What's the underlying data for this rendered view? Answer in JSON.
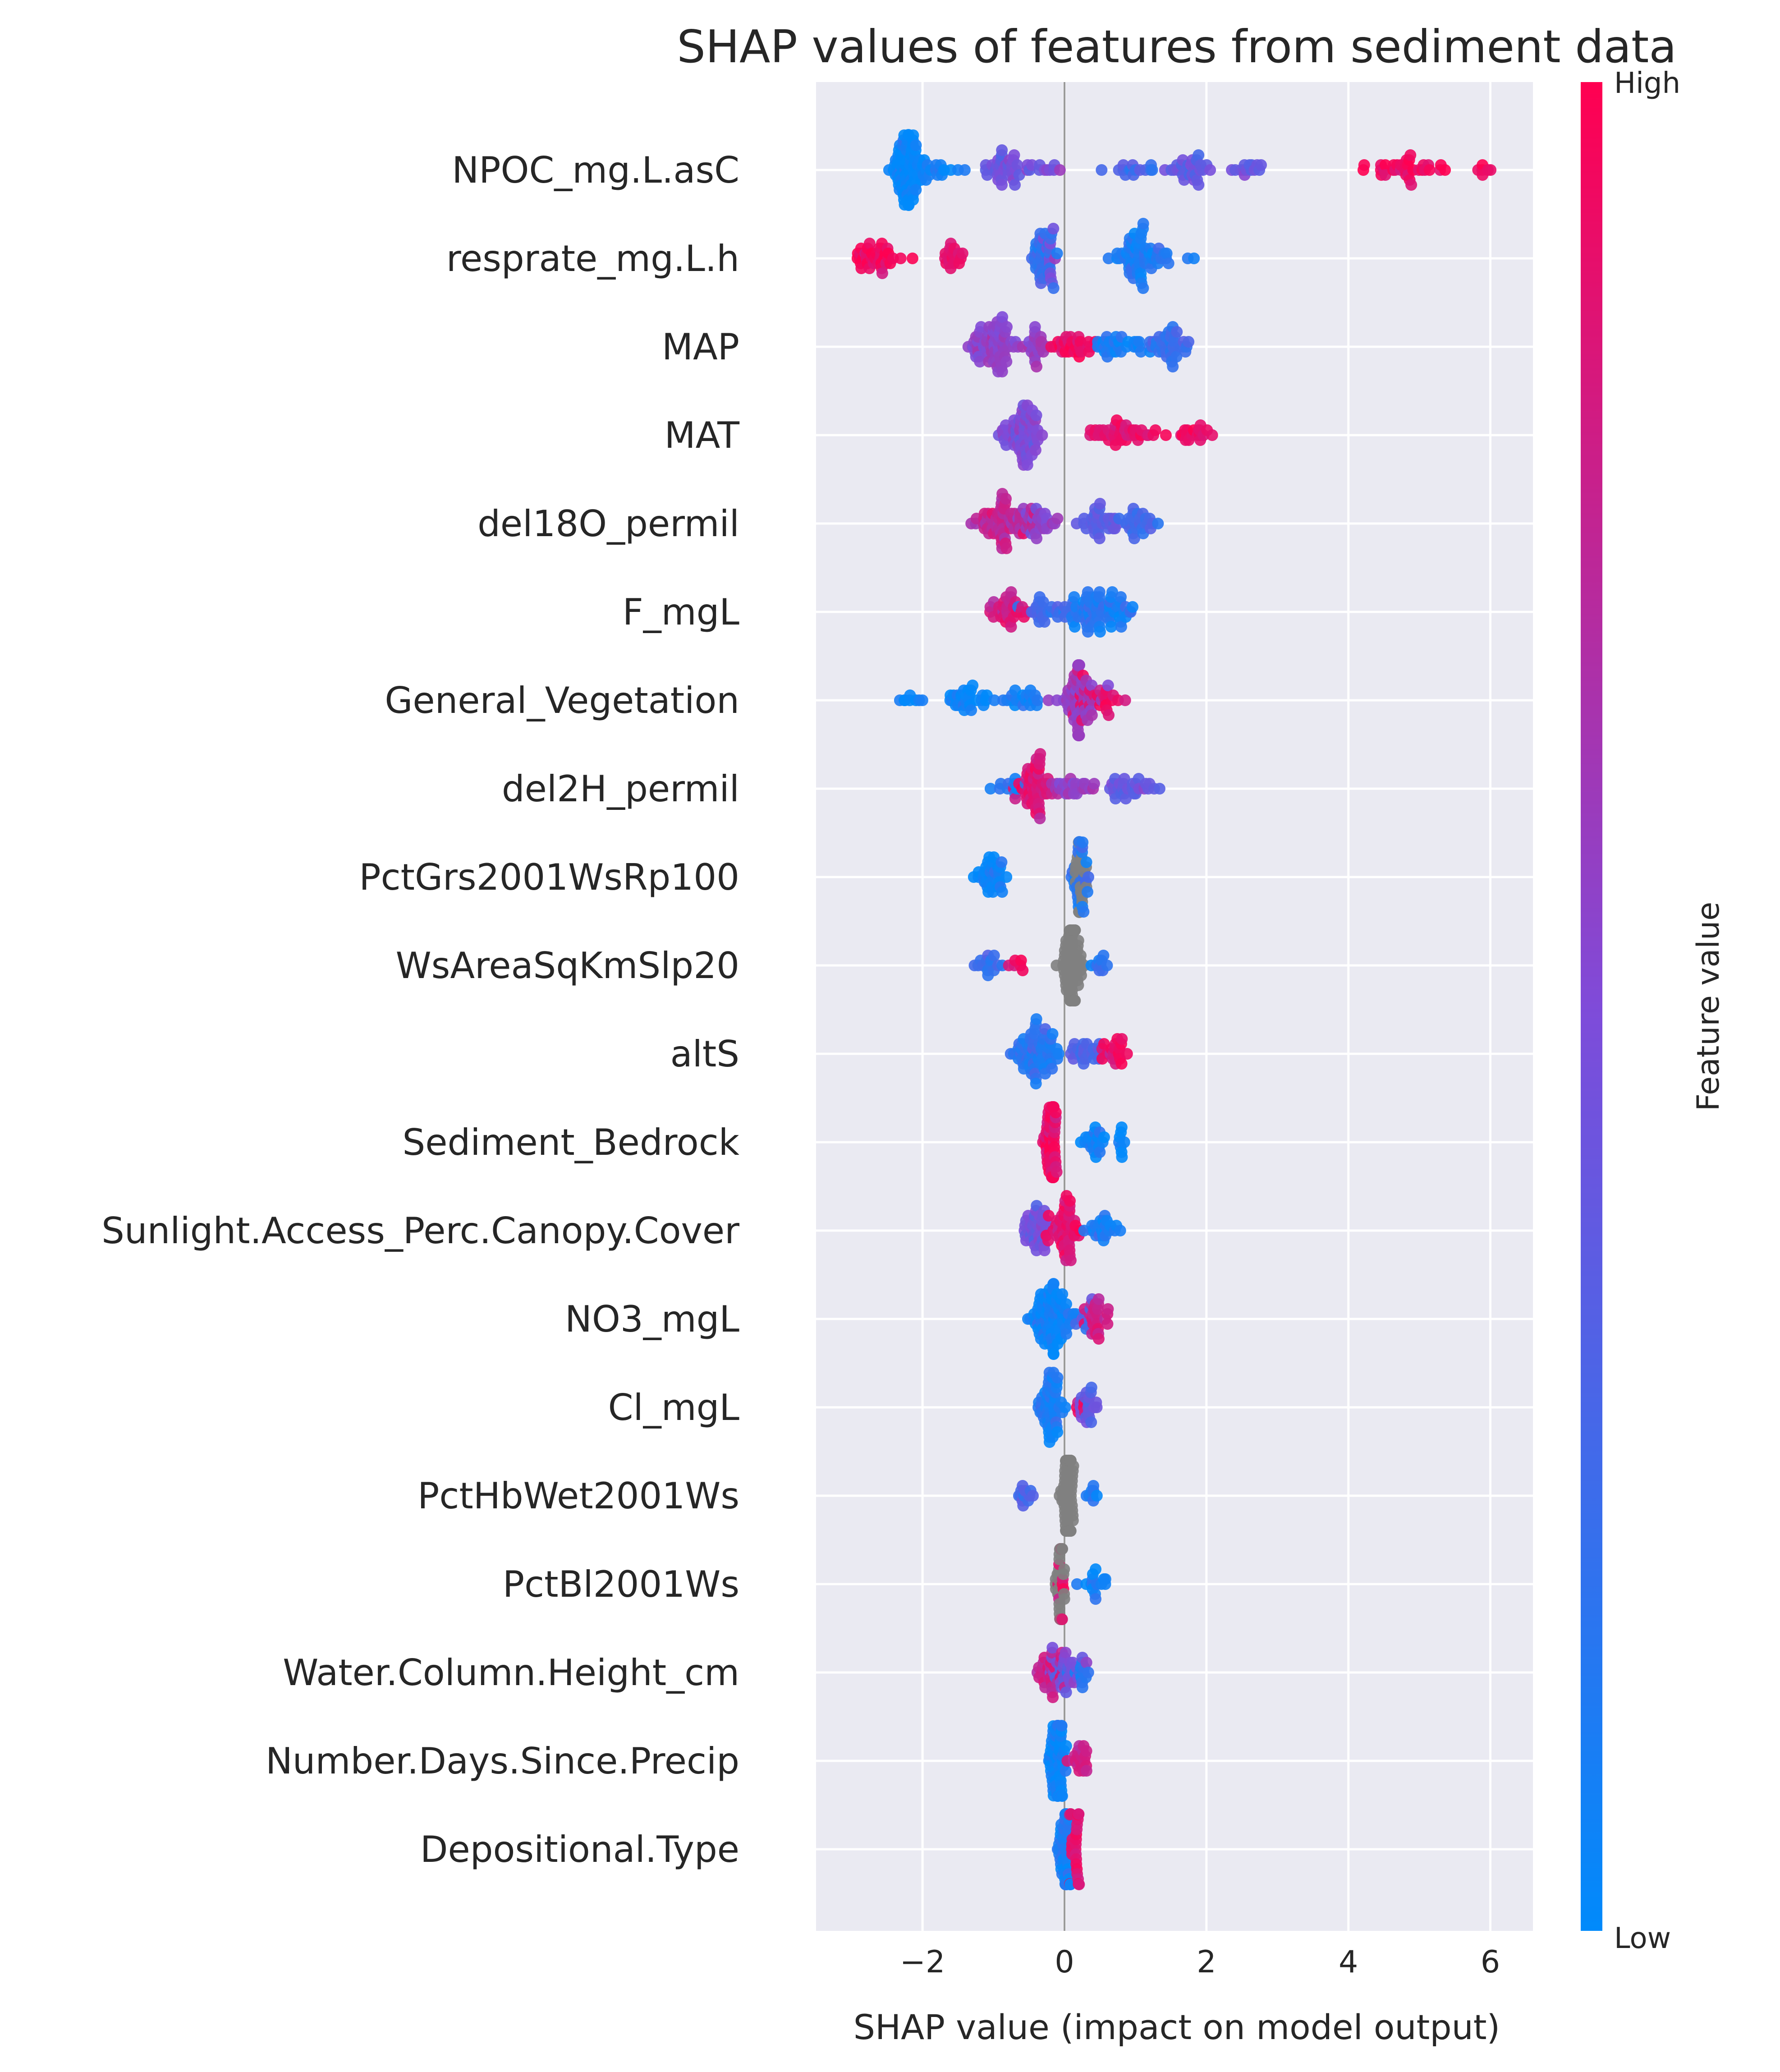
{
  "chart_data": {
    "type": "scatter",
    "title": "SHAP values of features from sediment data",
    "xlabel": "SHAP value (impact on model output)",
    "colorbar_label": "Feature value",
    "colorbar_high": "High",
    "colorbar_low": "Low",
    "xlim": [
      -3.5,
      6.6
    ],
    "xticks": [
      -2,
      0,
      2,
      4,
      6
    ],
    "xtick_labels": [
      "−2",
      "0",
      "2",
      "4",
      "6"
    ],
    "grid": true,
    "colors": {
      "low": "#008afb",
      "mid": "#7f4bd9",
      "high": "#ff0051",
      "missing": "#808080",
      "background": "#eaeaf2"
    },
    "features": [
      {
        "name": "NPOC_mg.L.asC",
        "clusters": [
          [
            -2.2,
            0.2,
            0.0,
            60
          ],
          [
            -2.0,
            0.45,
            0.05,
            35
          ],
          [
            -0.8,
            0.35,
            0.45,
            40
          ],
          [
            -0.2,
            0.2,
            0.5,
            6
          ],
          [
            0.9,
            0.3,
            0.3,
            15
          ],
          [
            1.8,
            0.3,
            0.4,
            30
          ],
          [
            2.6,
            0.3,
            0.4,
            14
          ],
          [
            4.7,
            0.5,
            0.95,
            35
          ],
          [
            5.9,
            0.15,
            0.95,
            6
          ]
        ]
      },
      {
        "name": "resprate_mg.L.h",
        "clusters": [
          [
            -2.6,
            0.35,
            0.95,
            40
          ],
          [
            -1.6,
            0.2,
            0.9,
            18
          ],
          [
            -0.3,
            0.15,
            0.2,
            40
          ],
          [
            -0.2,
            0.1,
            0.45,
            10
          ],
          [
            1.0,
            0.25,
            0.1,
            55
          ],
          [
            1.4,
            0.15,
            0.15,
            10
          ],
          [
            1.8,
            0.05,
            0.05,
            2
          ]
        ]
      },
      {
        "name": "MAP",
        "clusters": [
          [
            -1.0,
            0.25,
            0.55,
            70
          ],
          [
            -0.4,
            0.15,
            0.6,
            20
          ],
          [
            0.1,
            0.3,
            0.92,
            30
          ],
          [
            0.8,
            0.3,
            0.1,
            30
          ],
          [
            1.5,
            0.3,
            0.2,
            40
          ]
        ]
      },
      {
        "name": "MAT",
        "clusters": [
          [
            -0.6,
            0.25,
            0.5,
            70
          ],
          [
            0.8,
            0.45,
            0.9,
            40
          ],
          [
            1.9,
            0.25,
            0.92,
            18
          ]
        ]
      },
      {
        "name": "del18O_permil",
        "clusters": [
          [
            -0.8,
            0.35,
            0.75,
            70
          ],
          [
            -0.4,
            0.3,
            0.55,
            25
          ],
          [
            0.5,
            0.25,
            0.35,
            30
          ],
          [
            1.0,
            0.3,
            0.25,
            30
          ]
        ]
      },
      {
        "name": "F_mgL",
        "clusters": [
          [
            -0.8,
            0.25,
            0.85,
            30
          ],
          [
            -0.3,
            0.3,
            0.25,
            25
          ],
          [
            0.4,
            0.35,
            0.15,
            60
          ],
          [
            0.8,
            0.2,
            0.1,
            15
          ]
        ]
      },
      {
        "name": "General_Vegetation",
        "clusters": [
          [
            -2.2,
            0.2,
            0.05,
            8
          ],
          [
            -1.4,
            0.3,
            0.05,
            30
          ],
          [
            -0.6,
            0.25,
            0.1,
            20
          ],
          [
            0.2,
            0.25,
            0.6,
            60
          ],
          [
            0.5,
            0.3,
            0.9,
            25
          ]
        ]
      },
      {
        "name": "del2H_permil",
        "clusters": [
          [
            -0.8,
            0.2,
            0.1,
            10
          ],
          [
            -0.4,
            0.25,
            0.85,
            55
          ],
          [
            0.2,
            0.3,
            0.6,
            25
          ],
          [
            0.9,
            0.3,
            0.4,
            30
          ]
        ]
      },
      {
        "name": "PctGrs2001WsRp100",
        "clusters": [
          [
            -1.0,
            0.2,
            0.05,
            35
          ],
          [
            0.2,
            0.1,
            0.15,
            25
          ],
          [
            0.2,
            0.08,
            -1,
            20
          ]
        ]
      },
      {
        "name": "WsAreaSqKmSlp20",
        "clusters": [
          [
            -1.1,
            0.15,
            0.2,
            15
          ],
          [
            -0.7,
            0.1,
            0.9,
            6
          ],
          [
            0.1,
            0.12,
            -1,
            80
          ],
          [
            0.5,
            0.15,
            0.2,
            10
          ]
        ]
      },
      {
        "name": "altS",
        "clusters": [
          [
            -0.4,
            0.3,
            0.15,
            70
          ],
          [
            0.3,
            0.25,
            0.3,
            25
          ],
          [
            0.7,
            0.15,
            0.9,
            20
          ]
        ]
      },
      {
        "name": "Sediment_Bedrock",
        "clusters": [
          [
            -0.2,
            0.08,
            0.92,
            55
          ],
          [
            0.4,
            0.15,
            0.05,
            20
          ],
          [
            0.8,
            0.05,
            0.05,
            8
          ]
        ]
      },
      {
        "name": "Sunlight.Access_Perc.Canopy.Cover",
        "clusters": [
          [
            -0.4,
            0.15,
            0.45,
            40
          ],
          [
            0.0,
            0.2,
            0.9,
            50
          ],
          [
            0.5,
            0.2,
            0.1,
            25
          ]
        ]
      },
      {
        "name": "NO3_mgL",
        "clusters": [
          [
            -0.2,
            0.25,
            0.05,
            90
          ],
          [
            0.5,
            0.2,
            0.8,
            25
          ],
          [
            0.3,
            0.15,
            0.3,
            10
          ]
        ]
      },
      {
        "name": "Cl_mgL",
        "clusters": [
          [
            -0.2,
            0.15,
            0.1,
            55
          ],
          [
            0.3,
            0.15,
            0.4,
            20
          ],
          [
            0.2,
            0.1,
            0.9,
            6
          ]
        ]
      },
      {
        "name": "PctHbWet2001Ws",
        "clusters": [
          [
            -0.5,
            0.15,
            0.3,
            12
          ],
          [
            0.05,
            0.08,
            -1,
            70
          ],
          [
            0.4,
            0.1,
            0.1,
            8
          ]
        ]
      },
      {
        "name": "PctBl2001Ws",
        "clusters": [
          [
            -0.05,
            0.06,
            -1,
            40
          ],
          [
            -0.05,
            0.06,
            0.9,
            12
          ],
          [
            0.4,
            0.15,
            0.05,
            15
          ]
        ]
      },
      {
        "name": "Water.Column.Height_cm",
        "clusters": [
          [
            -0.2,
            0.2,
            0.8,
            30
          ],
          [
            0.0,
            0.2,
            0.45,
            30
          ],
          [
            0.2,
            0.15,
            0.15,
            12
          ]
        ]
      },
      {
        "name": "Number.Days.Since.Precip",
        "clusters": [
          [
            -0.1,
            0.1,
            0.05,
            60
          ],
          [
            0.2,
            0.12,
            0.8,
            20
          ]
        ]
      },
      {
        "name": "Depositional.Type",
        "clusters": [
          [
            0.0,
            0.08,
            0.1,
            50
          ],
          [
            0.15,
            0.08,
            0.9,
            25
          ]
        ]
      }
    ]
  }
}
